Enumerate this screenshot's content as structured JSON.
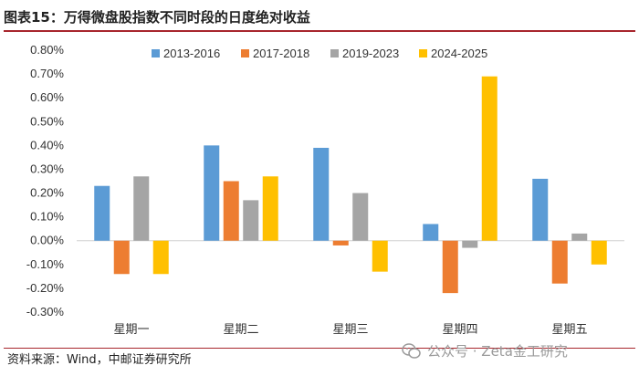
{
  "header": {
    "title": "图表15：万得微盘股指数不同时段的日度绝对收益"
  },
  "footer": {
    "source": "资料来源：Wind，中邮证券研究所"
  },
  "watermark": {
    "text": "公众号 · Zeta金工研究",
    "icon": "wechat-icon"
  },
  "colors": {
    "rule": "#a8262d"
  },
  "chart_data": {
    "type": "bar",
    "categories": [
      "星期一",
      "星期二",
      "星期三",
      "星期四",
      "星期五"
    ],
    "series": [
      {
        "name": "2013-2016",
        "color": "#5b9bd5",
        "values": [
          0.0023,
          0.004,
          0.0039,
          0.0007,
          0.0026
        ]
      },
      {
        "name": "2017-2018",
        "color": "#ed7d31",
        "values": [
          -0.0014,
          0.0025,
          -0.0002,
          -0.0022,
          -0.0018
        ]
      },
      {
        "name": "2019-2023",
        "color": "#a5a5a5",
        "values": [
          0.0027,
          0.0017,
          0.002,
          -0.0003,
          0.0003
        ]
      },
      {
        "name": "2024-2025",
        "color": "#ffc000",
        "values": [
          -0.0014,
          0.0027,
          -0.0013,
          0.0069,
          -0.001
        ]
      }
    ],
    "ylim": [
      -0.003,
      0.008
    ],
    "yticks": [
      0.008,
      0.007,
      0.006,
      0.005,
      0.004,
      0.003,
      0.002,
      0.001,
      0.0,
      -0.001,
      -0.002,
      -0.003
    ],
    "ytick_labels": [
      "0.80%",
      "0.70%",
      "0.60%",
      "0.50%",
      "0.40%",
      "0.30%",
      "0.20%",
      "0.10%",
      "0.00%",
      "-0.10%",
      "-0.20%",
      "-0.30%"
    ],
    "legend_position": "top",
    "grid": false
  }
}
